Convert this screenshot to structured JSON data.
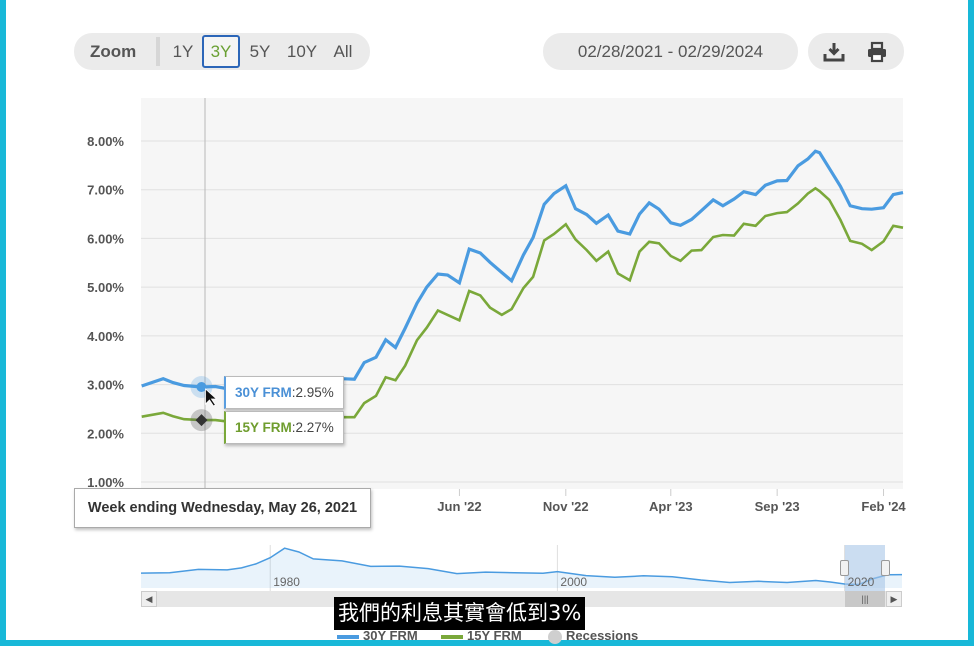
{
  "toolbar": {
    "zoom_label": "Zoom",
    "zoom_options": [
      "1Y",
      "3Y",
      "5Y",
      "10Y",
      "All"
    ],
    "zoom_selected": "3Y",
    "date_range": "02/28/2021 - 02/29/2024",
    "download_icon": "download-icon",
    "print_icon": "print-icon"
  },
  "tooltip": {
    "week": "Week ending Wednesday, May 26, 2021",
    "series_30_label": "30Y FRM",
    "series_30_value": ":2.95%",
    "series_15_label": "15Y FRM",
    "series_15_value": ":2.27%"
  },
  "subtitle": "我們的利息其實會低到3%",
  "colors": {
    "series_30": "#4a9be0",
    "series_15": "#7aa83a",
    "recessions": "#cfcfcf",
    "accent": "#2c66b8"
  },
  "chart_data": [
    {
      "type": "line",
      "title": "",
      "xlabel": "",
      "ylabel": "",
      "ylim": [
        1.0,
        8.0
      ],
      "y_ticks": [
        "1.00%",
        "2.00%",
        "3.00%",
        "4.00%",
        "5.00%",
        "6.00%",
        "7.00%",
        "8.00%"
      ],
      "x_ticks": [
        "2",
        "Jun '22",
        "Nov '22",
        "Apr '23",
        "Sep '23",
        "Feb '24"
      ],
      "x_ticks_at": [
        "2022-01-01",
        "2022-06-01",
        "2022-11-01",
        "2023-04-01",
        "2023-09-01",
        "2024-02-01"
      ],
      "x_range": [
        "2021-02-28",
        "2024-02-29"
      ],
      "grid": true,
      "highlight": {
        "date": "2021-05-26",
        "30Y FRM": 2.95,
        "15Y FRM": 2.27
      },
      "series": [
        {
          "name": "30Y FRM",
          "points": [
            [
              "2021-03-01",
              2.97
            ],
            [
              "2021-04-01",
              3.12
            ],
            [
              "2021-04-15",
              3.04
            ],
            [
              "2021-05-01",
              2.98
            ],
            [
              "2021-05-26",
              2.95
            ],
            [
              "2021-06-15",
              2.96
            ],
            [
              "2021-07-15",
              2.88
            ],
            [
              "2021-08-15",
              2.86
            ],
            [
              "2021-09-15",
              2.93
            ],
            [
              "2021-10-15",
              3.07
            ],
            [
              "2021-11-15",
              3.1
            ],
            [
              "2021-12-15",
              3.12
            ],
            [
              "2022-01-01",
              3.11
            ],
            [
              "2022-01-15",
              3.45
            ],
            [
              "2022-02-01",
              3.56
            ],
            [
              "2022-02-15",
              3.92
            ],
            [
              "2022-03-01",
              3.76
            ],
            [
              "2022-03-15",
              4.16
            ],
            [
              "2022-04-01",
              4.67
            ],
            [
              "2022-04-15",
              5.0
            ],
            [
              "2022-05-01",
              5.27
            ],
            [
              "2022-05-15",
              5.25
            ],
            [
              "2022-06-01",
              5.09
            ],
            [
              "2022-06-15",
              5.78
            ],
            [
              "2022-07-01",
              5.7
            ],
            [
              "2022-07-15",
              5.51
            ],
            [
              "2022-08-01",
              5.3
            ],
            [
              "2022-08-15",
              5.13
            ],
            [
              "2022-09-01",
              5.66
            ],
            [
              "2022-09-15",
              6.02
            ],
            [
              "2022-10-01",
              6.7
            ],
            [
              "2022-10-15",
              6.92
            ],
            [
              "2022-11-01",
              7.08
            ],
            [
              "2022-11-15",
              6.61
            ],
            [
              "2022-12-01",
              6.49
            ],
            [
              "2022-12-15",
              6.31
            ],
            [
              "2023-01-01",
              6.48
            ],
            [
              "2023-01-15",
              6.15
            ],
            [
              "2023-02-01",
              6.09
            ],
            [
              "2023-02-15",
              6.5
            ],
            [
              "2023-03-01",
              6.73
            ],
            [
              "2023-03-15",
              6.6
            ],
            [
              "2023-04-01",
              6.32
            ],
            [
              "2023-04-15",
              6.27
            ],
            [
              "2023-05-01",
              6.39
            ],
            [
              "2023-05-15",
              6.57
            ],
            [
              "2023-06-01",
              6.79
            ],
            [
              "2023-06-15",
              6.67
            ],
            [
              "2023-07-01",
              6.81
            ],
            [
              "2023-07-15",
              6.96
            ],
            [
              "2023-08-01",
              6.9
            ],
            [
              "2023-08-15",
              7.09
            ],
            [
              "2023-09-01",
              7.18
            ],
            [
              "2023-09-15",
              7.19
            ],
            [
              "2023-10-01",
              7.49
            ],
            [
              "2023-10-15",
              7.63
            ],
            [
              "2023-10-26",
              7.79
            ],
            [
              "2023-11-01",
              7.76
            ],
            [
              "2023-11-15",
              7.44
            ],
            [
              "2023-12-01",
              7.07
            ],
            [
              "2023-12-15",
              6.67
            ],
            [
              "2024-01-01",
              6.61
            ],
            [
              "2024-01-15",
              6.6
            ],
            [
              "2024-02-01",
              6.63
            ],
            [
              "2024-02-15",
              6.9
            ],
            [
              "2024-02-29",
              6.94
            ]
          ]
        },
        {
          "name": "15Y FRM",
          "points": [
            [
              "2021-03-01",
              2.34
            ],
            [
              "2021-04-01",
              2.42
            ],
            [
              "2021-04-15",
              2.35
            ],
            [
              "2021-05-01",
              2.29
            ],
            [
              "2021-05-26",
              2.27
            ],
            [
              "2021-06-15",
              2.27
            ],
            [
              "2021-07-15",
              2.22
            ],
            [
              "2021-08-15",
              2.17
            ],
            [
              "2021-09-15",
              2.22
            ],
            [
              "2021-10-15",
              2.3
            ],
            [
              "2021-11-15",
              2.39
            ],
            [
              "2021-12-15",
              2.33
            ],
            [
              "2022-01-01",
              2.33
            ],
            [
              "2022-01-15",
              2.62
            ],
            [
              "2022-02-01",
              2.77
            ],
            [
              "2022-02-15",
              3.15
            ],
            [
              "2022-03-01",
              3.09
            ],
            [
              "2022-03-15",
              3.39
            ],
            [
              "2022-04-01",
              3.91
            ],
            [
              "2022-04-15",
              4.17
            ],
            [
              "2022-05-01",
              4.52
            ],
            [
              "2022-05-15",
              4.43
            ],
            [
              "2022-06-01",
              4.32
            ],
            [
              "2022-06-15",
              4.92
            ],
            [
              "2022-07-01",
              4.83
            ],
            [
              "2022-07-15",
              4.58
            ],
            [
              "2022-08-01",
              4.43
            ],
            [
              "2022-08-15",
              4.55
            ],
            [
              "2022-09-01",
              4.98
            ],
            [
              "2022-09-15",
              5.21
            ],
            [
              "2022-10-01",
              5.96
            ],
            [
              "2022-10-15",
              6.09
            ],
            [
              "2022-11-01",
              6.29
            ],
            [
              "2022-11-15",
              5.98
            ],
            [
              "2022-12-01",
              5.76
            ],
            [
              "2022-12-15",
              5.54
            ],
            [
              "2023-01-01",
              5.73
            ],
            [
              "2023-01-15",
              5.28
            ],
            [
              "2023-02-01",
              5.14
            ],
            [
              "2023-02-15",
              5.73
            ],
            [
              "2023-03-01",
              5.93
            ],
            [
              "2023-03-15",
              5.9
            ],
            [
              "2023-04-01",
              5.64
            ],
            [
              "2023-04-15",
              5.54
            ],
            [
              "2023-05-01",
              5.75
            ],
            [
              "2023-05-15",
              5.76
            ],
            [
              "2023-06-01",
              6.03
            ],
            [
              "2023-06-15",
              6.07
            ],
            [
              "2023-07-01",
              6.06
            ],
            [
              "2023-07-15",
              6.3
            ],
            [
              "2023-08-01",
              6.26
            ],
            [
              "2023-08-15",
              6.46
            ],
            [
              "2023-09-01",
              6.52
            ],
            [
              "2023-09-15",
              6.54
            ],
            [
              "2023-10-01",
              6.72
            ],
            [
              "2023-10-15",
              6.92
            ],
            [
              "2023-10-26",
              7.03
            ],
            [
              "2023-11-01",
              6.97
            ],
            [
              "2023-11-15",
              6.79
            ],
            [
              "2023-12-01",
              6.38
            ],
            [
              "2023-12-15",
              5.95
            ],
            [
              "2024-01-01",
              5.89
            ],
            [
              "2024-01-15",
              5.76
            ],
            [
              "2024-02-01",
              5.94
            ],
            [
              "2024-02-15",
              6.26
            ],
            [
              "2024-02-29",
              6.22
            ]
          ]
        }
      ]
    },
    {
      "type": "area",
      "title": "",
      "x_ticks": [
        "1980",
        "2000",
        "2020"
      ],
      "x_range": [
        1971,
        2024
      ],
      "series": [
        {
          "name": "30Y FRM",
          "points": [
            [
              1971,
              7.5
            ],
            [
              1973,
              7.6
            ],
            [
              1975,
              9.0
            ],
            [
              1977,
              8.8
            ],
            [
              1978,
              9.6
            ],
            [
              1979,
              11.2
            ],
            [
              1980,
              13.7
            ],
            [
              1981,
              17.5
            ],
            [
              1982,
              16.0
            ],
            [
              1983,
              13.2
            ],
            [
              1985,
              12.4
            ],
            [
              1987,
              10.2
            ],
            [
              1989,
              10.3
            ],
            [
              1991,
              9.3
            ],
            [
              1993,
              7.3
            ],
            [
              1995,
              7.9
            ],
            [
              1997,
              7.6
            ],
            [
              1999,
              7.4
            ],
            [
              2000,
              8.1
            ],
            [
              2002,
              6.5
            ],
            [
              2004,
              5.8
            ],
            [
              2006,
              6.4
            ],
            [
              2008,
              6.0
            ],
            [
              2010,
              4.7
            ],
            [
              2012,
              3.7
            ],
            [
              2014,
              4.2
            ],
            [
              2016,
              3.7
            ],
            [
              2018,
              4.5
            ],
            [
              2019,
              3.9
            ],
            [
              2020,
              3.1
            ],
            [
              2021,
              2.9
            ],
            [
              2022,
              5.3
            ],
            [
              2023,
              6.8
            ],
            [
              2024,
              6.9
            ]
          ]
        }
      ]
    }
  ],
  "legend": [
    "30Y FRM",
    "15Y FRM",
    "Recessions"
  ]
}
